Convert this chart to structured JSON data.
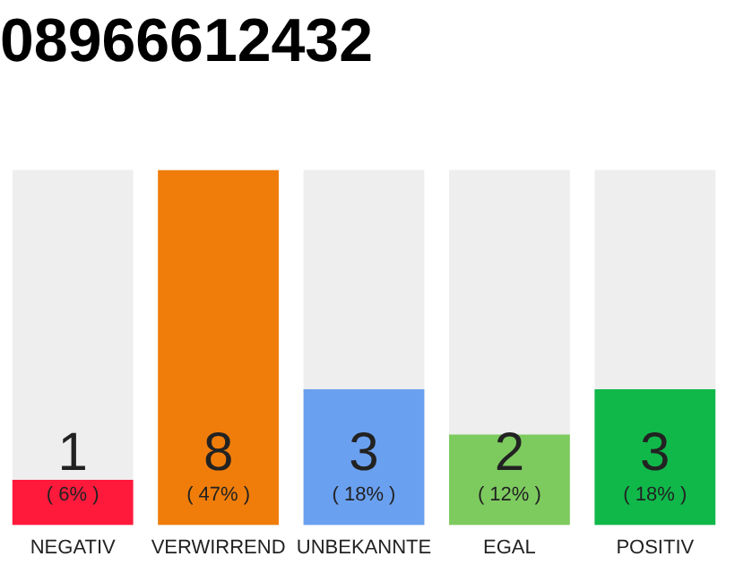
{
  "chart_data": {
    "type": "bar",
    "title": "08966612432",
    "categories": [
      "NEGATIV",
      "VERWIRREND",
      "UNBEKANNTE",
      "EGAL",
      "POSITIV"
    ],
    "values": [
      6,
      47,
      18,
      12,
      18
    ],
    "colors": [
      "#ff1a3c",
      "#f07d0a",
      "#6aa0f0",
      "#7dcb5f",
      "#10b84a"
    ],
    "value_labels": [
      "( 6% )",
      "( 47% )",
      "( 18% )",
      "( 12% )",
      "( 18% )"
    ],
    "annotations": [
      "1",
      "8",
      "3",
      "2",
      "3"
    ],
    "tick_labels": "x",
    "grid": false,
    "legend": false
  }
}
